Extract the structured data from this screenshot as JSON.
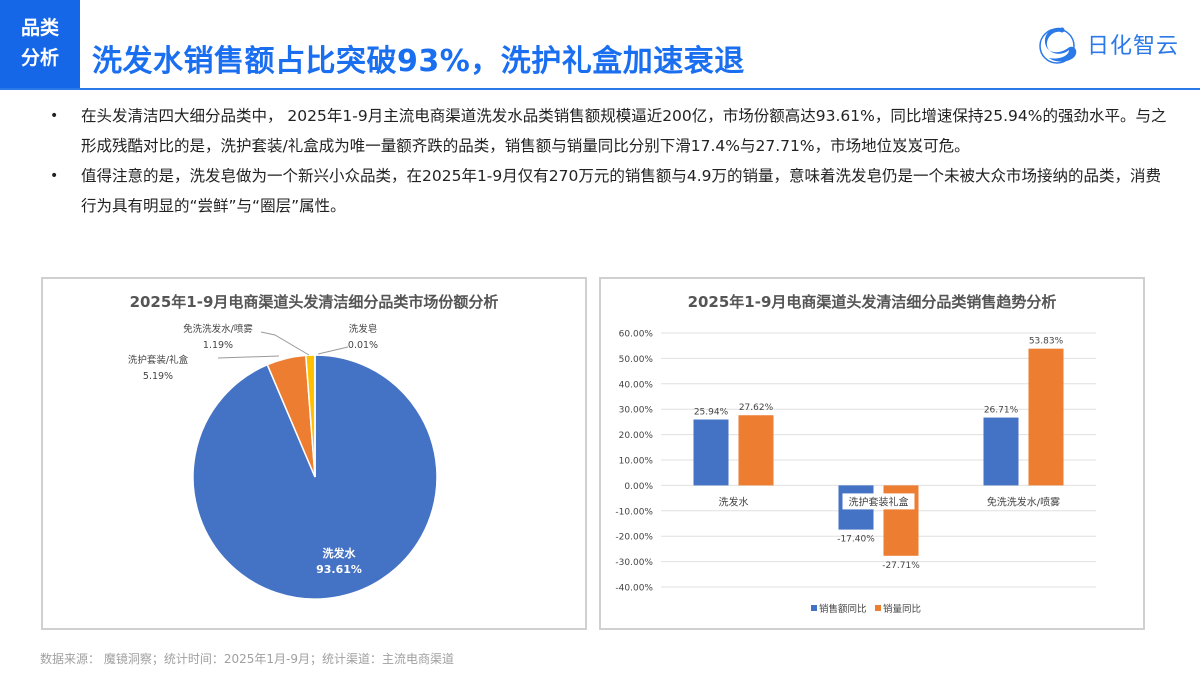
{
  "header": {
    "tag_line1": "品类",
    "tag_line2": "分析",
    "title": "洗发水销售额占比突破93%，洗护礼盒加速衰退",
    "logo_text": "日化智云",
    "accent_color": "#1667e8"
  },
  "bullets": [
    {
      "text": "在头发清洁四大细分品类中， 2025年1-9月主流电商渠道洗发水品类销售额规模逼近200亿，市场份额高达93.61%，同比增速保持25.94%的强劲水平。与之形成残酷对比的是，洗护套装/礼盒成为唯一量额齐跌的品类，销售额与销量同比分别下滑17.4%与27.71%，市场地位岌岌可危。"
    },
    {
      "text": "值得注意的是，洗发皂做为一个新兴小众品类，在2025年1-9月仅有270万元的销售额与4.9万的销量，意味着洗发皂仍是一个未被大众市场接纳的品类，消费行为具有明显的“尝鲜”与“圈层”属性。"
    }
  ],
  "bullet_symbol": "•",
  "source_note": "数据来源： 魔镜洞察；统计时间：2025年1月-9月；统计渠道：主流电商渠道",
  "chart_data": [
    {
      "type": "pie",
      "title": "2025年1-9月电商渠道头发清洁细分品类市场份额分析",
      "categories": [
        "洗发水",
        "洗护套装/礼盒",
        "免洗洗发水/喷雾",
        "洗发皂"
      ],
      "values": [
        93.61,
        5.19,
        1.19,
        0.01
      ],
      "labels": [
        "93.61%",
        "5.19%",
        "1.19%",
        "0.01%"
      ],
      "colors": [
        "#4472c4",
        "#ed7d31",
        "#ffc000",
        "#5b9bd5"
      ],
      "legend": "none (data labels with leader lines)"
    },
    {
      "type": "bar",
      "title": "2025年1-9月电商渠道头发清洁细分品类销售趋势分析",
      "categories": [
        "洗发水",
        "洗护套装礼盒",
        "免洗洗发水/喷雾"
      ],
      "series": [
        {
          "name": "销售额同比",
          "values": [
            25.94,
            -17.4,
            26.71
          ],
          "labels": [
            "25.94%",
            "-17.40%",
            "26.71%"
          ],
          "color": "#4472c4"
        },
        {
          "name": "销量同比",
          "values": [
            27.62,
            -27.71,
            53.83
          ],
          "labels": [
            "27.62%",
            "-27.71%",
            "53.83%"
          ],
          "color": "#ed7d31"
        }
      ],
      "ylim": [
        -40,
        60
      ],
      "yticks": [
        "60.00%",
        "50.00%",
        "40.00%",
        "30.00%",
        "20.00%",
        "10.00%",
        "0.00%",
        "-10.00%",
        "-20.00%",
        "-30.00%",
        "-40.00%"
      ],
      "grid": true,
      "legend_position": "bottom",
      "xlabel": "",
      "ylabel": ""
    }
  ]
}
